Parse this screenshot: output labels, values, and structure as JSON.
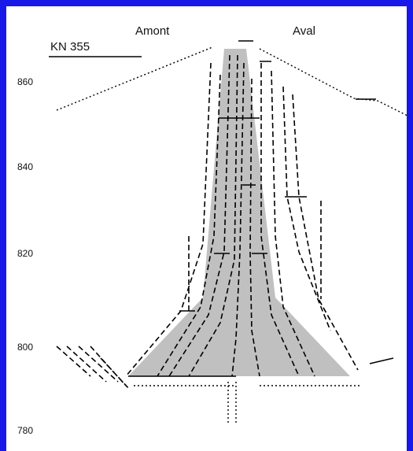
{
  "header": {
    "left_label": "Amont",
    "right_label": "Aval",
    "section": "KN 355"
  },
  "axis": {
    "labels": [
      "860",
      "840",
      "820",
      "800",
      "780"
    ]
  }
}
